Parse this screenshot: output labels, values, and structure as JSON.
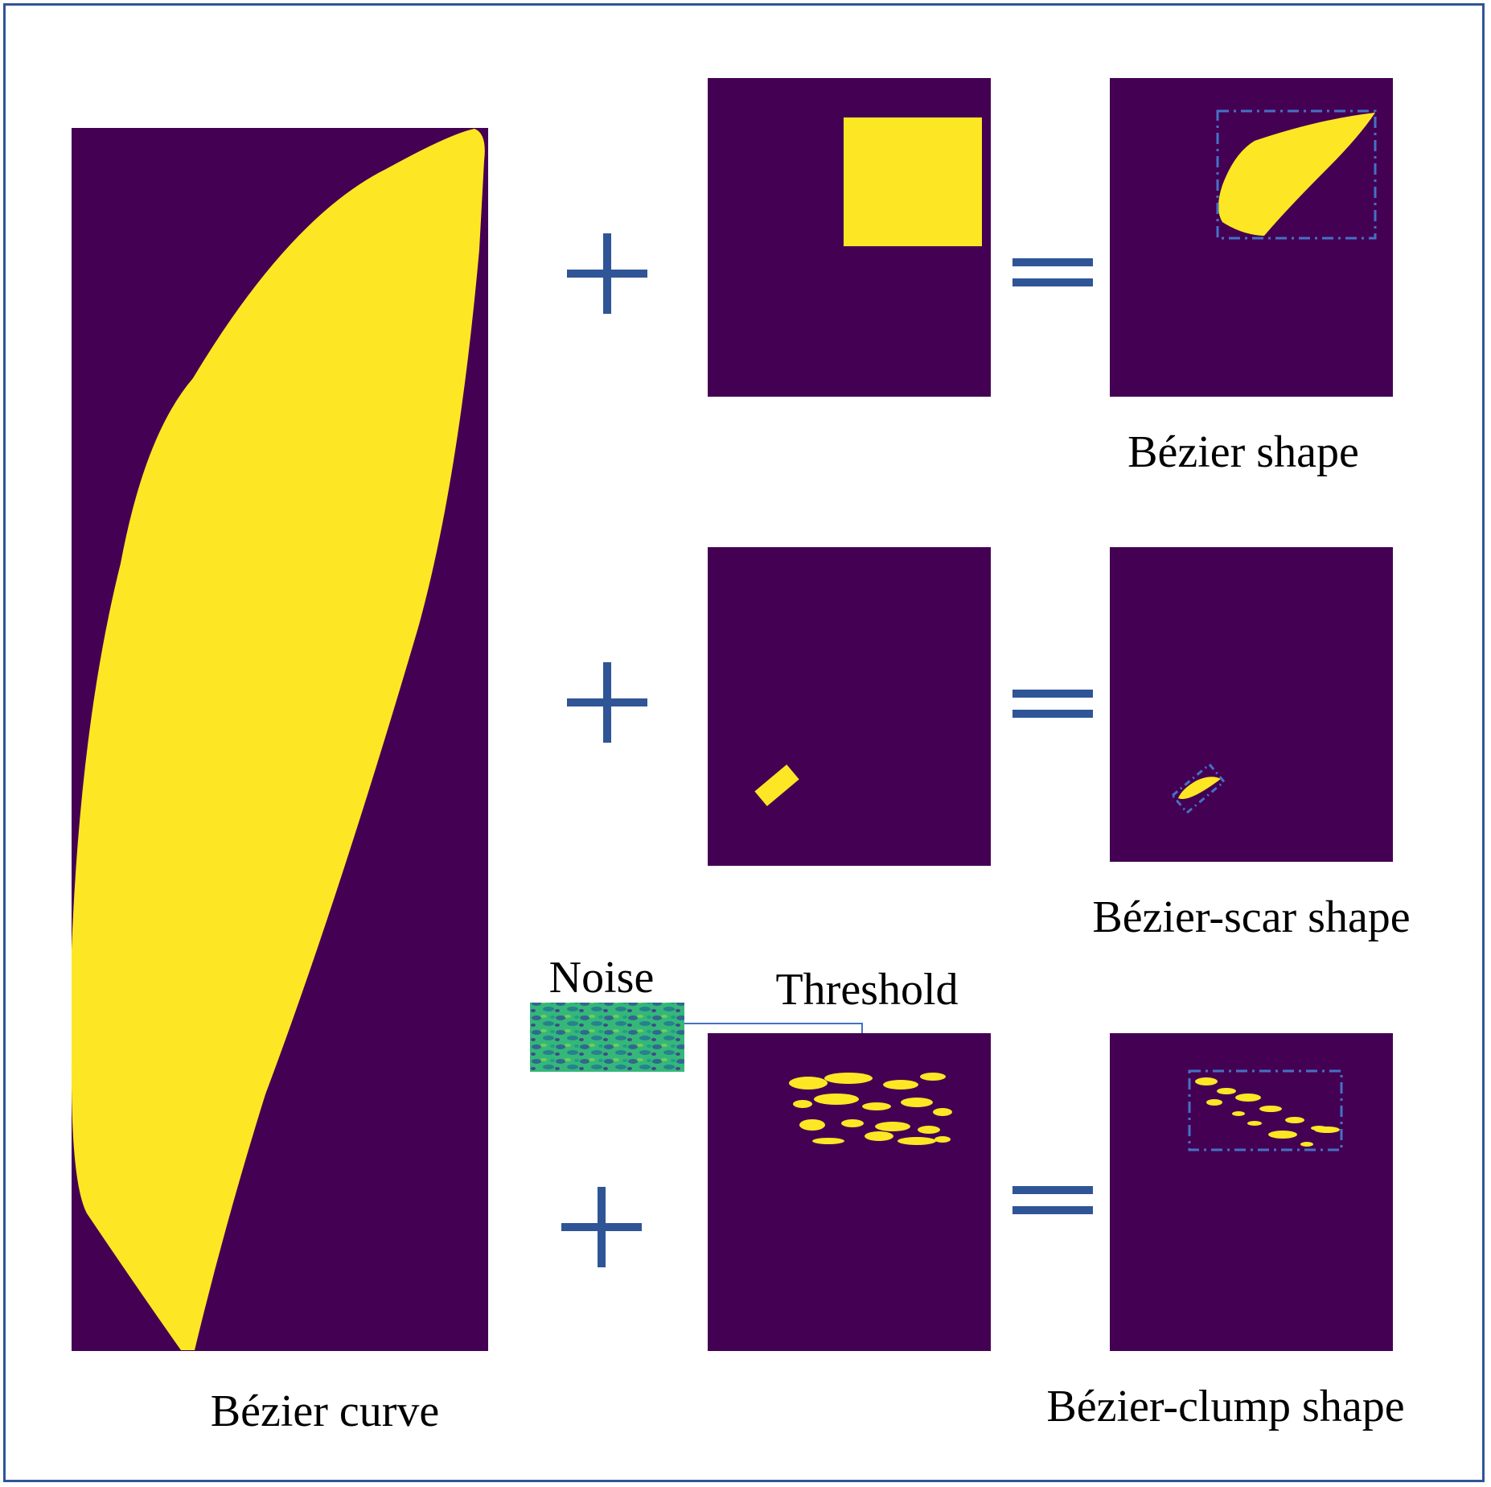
{
  "colors": {
    "background": "#440154",
    "foreground": "#fde725",
    "operator": "#2f5597",
    "bbox": "#4472c4",
    "arrow": "#4472c4",
    "frame": "#2f5597"
  },
  "labels": {
    "bezier_curve": "Bézier curve",
    "bezier_shape": "Bézier shape",
    "bezier_scar_shape": "Bézier-scar shape",
    "bezier_clump_shape": "Bézier-clump shape",
    "noise": "Noise",
    "threshold": "Threshold"
  },
  "operators": {
    "plus": "plus-icon",
    "equals": "equals-icon"
  }
}
